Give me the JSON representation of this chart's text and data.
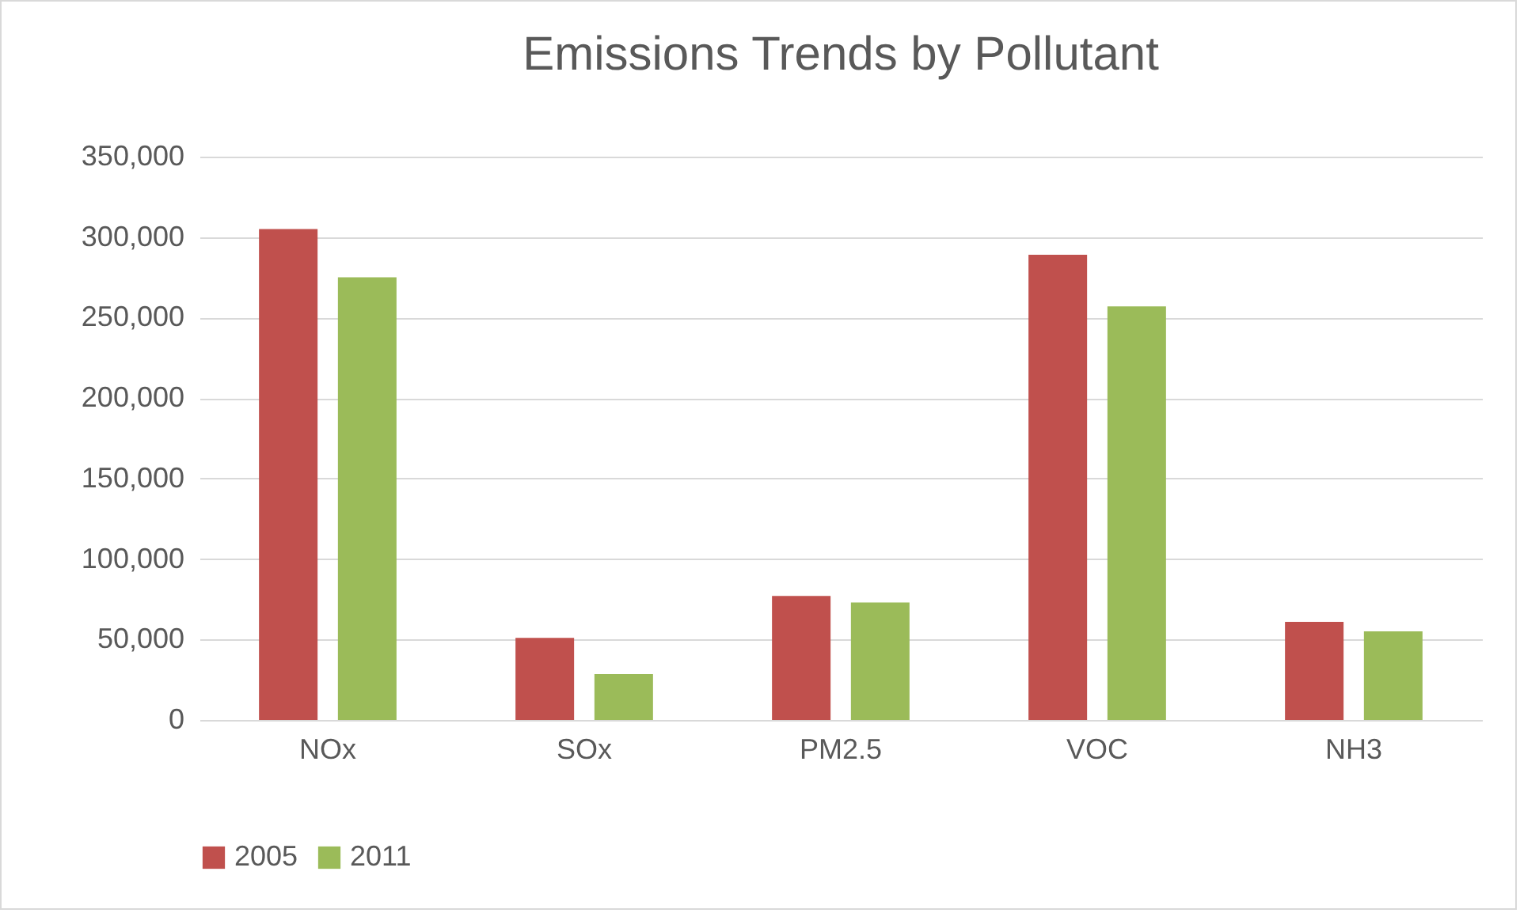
{
  "chart_data": {
    "type": "bar",
    "title": "Emissions Trends by Pollutant",
    "categories": [
      "NOx",
      "SOx",
      "PM2.5",
      "VOC",
      "NH3"
    ],
    "series": [
      {
        "name": "2005",
        "color": "#c0504d",
        "values": [
          305000,
          51000,
          77000,
          289000,
          61000
        ]
      },
      {
        "name": "2011",
        "color": "#9bbb59",
        "values": [
          275000,
          28500,
          73000,
          257000,
          55000
        ]
      }
    ],
    "ylim": [
      0,
      350000
    ],
    "yticks": [
      {
        "value": 0,
        "label": "0"
      },
      {
        "value": 50000,
        "label": "50,000"
      },
      {
        "value": 100000,
        "label": "100,000"
      },
      {
        "value": 150000,
        "label": "150,000"
      },
      {
        "value": 200000,
        "label": "200,000"
      },
      {
        "value": 250000,
        "label": "250,000"
      },
      {
        "value": 300000,
        "label": "300,000"
      },
      {
        "value": 350000,
        "label": "350,000"
      }
    ],
    "grid": "y",
    "legend": "bottom"
  }
}
